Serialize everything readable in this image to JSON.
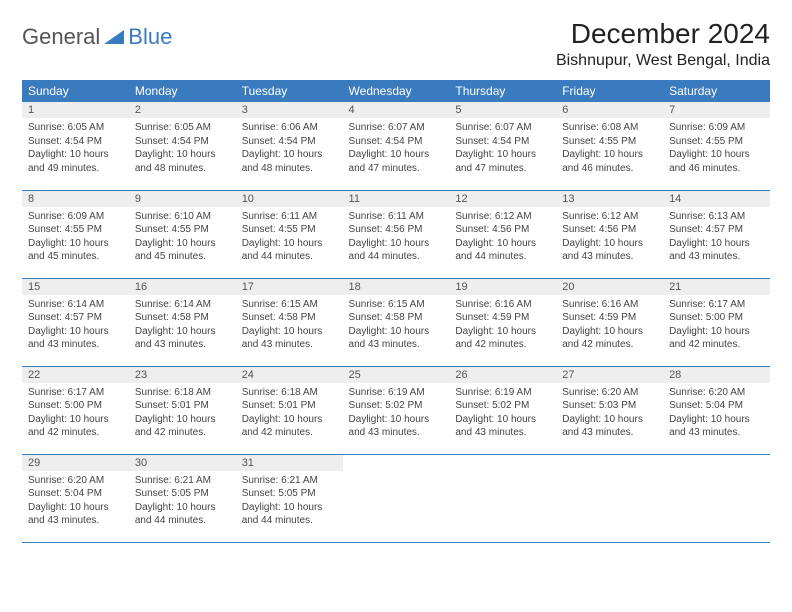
{
  "logo": {
    "part1": "General",
    "part2": "Blue"
  },
  "title": "December 2024",
  "location": "Bishnupur, West Bengal, India",
  "colors": {
    "header_bg": "#3a7bbf",
    "header_text": "#ffffff",
    "daynum_bg": "#eeeeee",
    "row_border": "#3a7bbf",
    "text": "#444444"
  },
  "weekdays": [
    "Sunday",
    "Monday",
    "Tuesday",
    "Wednesday",
    "Thursday",
    "Friday",
    "Saturday"
  ],
  "days": [
    {
      "n": 1,
      "sr": "6:05 AM",
      "ss": "4:54 PM",
      "dl": "10 hours and 49 minutes."
    },
    {
      "n": 2,
      "sr": "6:05 AM",
      "ss": "4:54 PM",
      "dl": "10 hours and 48 minutes."
    },
    {
      "n": 3,
      "sr": "6:06 AM",
      "ss": "4:54 PM",
      "dl": "10 hours and 48 minutes."
    },
    {
      "n": 4,
      "sr": "6:07 AM",
      "ss": "4:54 PM",
      "dl": "10 hours and 47 minutes."
    },
    {
      "n": 5,
      "sr": "6:07 AM",
      "ss": "4:54 PM",
      "dl": "10 hours and 47 minutes."
    },
    {
      "n": 6,
      "sr": "6:08 AM",
      "ss": "4:55 PM",
      "dl": "10 hours and 46 minutes."
    },
    {
      "n": 7,
      "sr": "6:09 AM",
      "ss": "4:55 PM",
      "dl": "10 hours and 46 minutes."
    },
    {
      "n": 8,
      "sr": "6:09 AM",
      "ss": "4:55 PM",
      "dl": "10 hours and 45 minutes."
    },
    {
      "n": 9,
      "sr": "6:10 AM",
      "ss": "4:55 PM",
      "dl": "10 hours and 45 minutes."
    },
    {
      "n": 10,
      "sr": "6:11 AM",
      "ss": "4:55 PM",
      "dl": "10 hours and 44 minutes."
    },
    {
      "n": 11,
      "sr": "6:11 AM",
      "ss": "4:56 PM",
      "dl": "10 hours and 44 minutes."
    },
    {
      "n": 12,
      "sr": "6:12 AM",
      "ss": "4:56 PM",
      "dl": "10 hours and 44 minutes."
    },
    {
      "n": 13,
      "sr": "6:12 AM",
      "ss": "4:56 PM",
      "dl": "10 hours and 43 minutes."
    },
    {
      "n": 14,
      "sr": "6:13 AM",
      "ss": "4:57 PM",
      "dl": "10 hours and 43 minutes."
    },
    {
      "n": 15,
      "sr": "6:14 AM",
      "ss": "4:57 PM",
      "dl": "10 hours and 43 minutes."
    },
    {
      "n": 16,
      "sr": "6:14 AM",
      "ss": "4:58 PM",
      "dl": "10 hours and 43 minutes."
    },
    {
      "n": 17,
      "sr": "6:15 AM",
      "ss": "4:58 PM",
      "dl": "10 hours and 43 minutes."
    },
    {
      "n": 18,
      "sr": "6:15 AM",
      "ss": "4:58 PM",
      "dl": "10 hours and 43 minutes."
    },
    {
      "n": 19,
      "sr": "6:16 AM",
      "ss": "4:59 PM",
      "dl": "10 hours and 42 minutes."
    },
    {
      "n": 20,
      "sr": "6:16 AM",
      "ss": "4:59 PM",
      "dl": "10 hours and 42 minutes."
    },
    {
      "n": 21,
      "sr": "6:17 AM",
      "ss": "5:00 PM",
      "dl": "10 hours and 42 minutes."
    },
    {
      "n": 22,
      "sr": "6:17 AM",
      "ss": "5:00 PM",
      "dl": "10 hours and 42 minutes."
    },
    {
      "n": 23,
      "sr": "6:18 AM",
      "ss": "5:01 PM",
      "dl": "10 hours and 42 minutes."
    },
    {
      "n": 24,
      "sr": "6:18 AM",
      "ss": "5:01 PM",
      "dl": "10 hours and 42 minutes."
    },
    {
      "n": 25,
      "sr": "6:19 AM",
      "ss": "5:02 PM",
      "dl": "10 hours and 43 minutes."
    },
    {
      "n": 26,
      "sr": "6:19 AM",
      "ss": "5:02 PM",
      "dl": "10 hours and 43 minutes."
    },
    {
      "n": 27,
      "sr": "6:20 AM",
      "ss": "5:03 PM",
      "dl": "10 hours and 43 minutes."
    },
    {
      "n": 28,
      "sr": "6:20 AM",
      "ss": "5:04 PM",
      "dl": "10 hours and 43 minutes."
    },
    {
      "n": 29,
      "sr": "6:20 AM",
      "ss": "5:04 PM",
      "dl": "10 hours and 43 minutes."
    },
    {
      "n": 30,
      "sr": "6:21 AM",
      "ss": "5:05 PM",
      "dl": "10 hours and 44 minutes."
    },
    {
      "n": 31,
      "sr": "6:21 AM",
      "ss": "5:05 PM",
      "dl": "10 hours and 44 minutes."
    }
  ],
  "labels": {
    "sunrise": "Sunrise:",
    "sunset": "Sunset:",
    "daylight": "Daylight:"
  },
  "layout": {
    "start_weekday": 0,
    "columns": 7
  }
}
